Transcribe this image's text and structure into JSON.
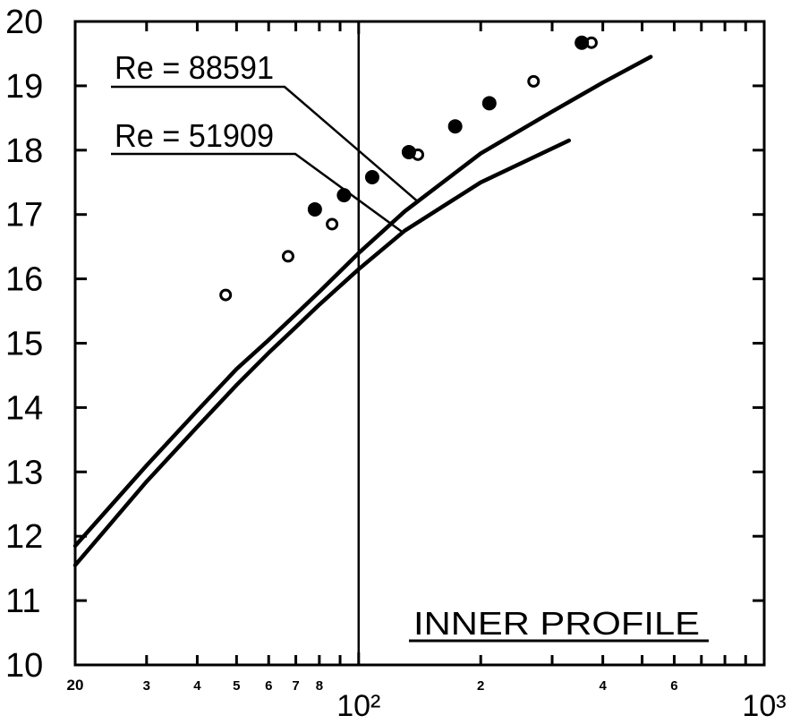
{
  "chart_data": {
    "type": "scatter",
    "title": "",
    "xlabel": "",
    "ylabel": "",
    "x_scale": "log",
    "xlim": [
      20,
      1000
    ],
    "ylim": [
      10,
      20
    ],
    "grid": false,
    "x_ticks": [
      {
        "value": 20,
        "label": "20"
      },
      {
        "value": 30,
        "label": "3"
      },
      {
        "value": 40,
        "label": "4"
      },
      {
        "value": 50,
        "label": "5"
      },
      {
        "value": 60,
        "label": "6"
      },
      {
        "value": 70,
        "label": "7"
      },
      {
        "value": 80,
        "label": "8"
      },
      {
        "value": 90,
        "label": ""
      },
      {
        "value": 100,
        "label": "10²",
        "major": true
      },
      {
        "value": 200,
        "label": "2"
      },
      {
        "value": 300,
        "label": ""
      },
      {
        "value": 400,
        "label": "4"
      },
      {
        "value": 500,
        "label": ""
      },
      {
        "value": 600,
        "label": "6"
      },
      {
        "value": 700,
        "label": ""
      },
      {
        "value": 800,
        "label": ""
      },
      {
        "value": 900,
        "label": ""
      },
      {
        "value": 1000,
        "label": "10³",
        "major": true
      }
    ],
    "y_ticks": [
      10,
      11,
      12,
      13,
      14,
      15,
      16,
      17,
      18,
      19,
      20
    ],
    "vertical_reference_x": 100,
    "annotation": "INNER  PROFILE",
    "series": [
      {
        "name": "Re = 88591",
        "kind": "line",
        "x": [
          20,
          30,
          40,
          50,
          60,
          70,
          80,
          100,
          130,
          200,
          300,
          400,
          525
        ],
        "y": [
          11.85,
          13.1,
          13.95,
          14.6,
          15.05,
          15.45,
          15.8,
          16.4,
          17.05,
          17.95,
          18.6,
          19.05,
          19.45
        ]
      },
      {
        "name": "Re = 51909",
        "kind": "line",
        "x": [
          20,
          30,
          40,
          50,
          60,
          70,
          80,
          100,
          130,
          200,
          330
        ],
        "y": [
          11.55,
          12.85,
          13.7,
          14.35,
          14.85,
          15.25,
          15.6,
          16.15,
          16.75,
          17.5,
          18.15
        ]
      },
      {
        "name": "",
        "kind": "points",
        "marker": "open",
        "x": [
          47,
          67,
          86,
          140,
          270,
          375
        ],
        "y": [
          15.75,
          16.35,
          16.85,
          17.93,
          19.07,
          19.67
        ]
      },
      {
        "name": "",
        "kind": "points",
        "marker": "filled",
        "x": [
          78,
          92,
          108,
          133,
          173,
          210,
          355
        ],
        "y": [
          17.08,
          17.3,
          17.58,
          17.97,
          18.37,
          18.73,
          19.67
        ]
      }
    ],
    "labels": [
      {
        "text": "Re = 88591",
        "series": "Re = 88591",
        "anchor_x": 140,
        "anchor_y": 17.2
      },
      {
        "text": "Re = 51909",
        "series": "Re = 51909",
        "anchor_x": 128,
        "anchor_y": 16.73
      }
    ]
  }
}
